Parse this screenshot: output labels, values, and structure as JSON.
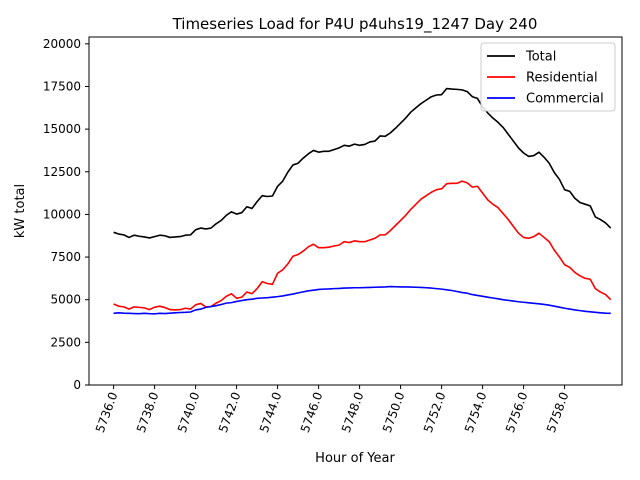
{
  "chart_data": {
    "type": "line",
    "title": "Timeseries Load for P4U p4uhs19_1247  Day 240",
    "xlabel": "Hour of Year",
    "ylabel": "kW total",
    "xlim": [
      5734.8,
      5760.8
    ],
    "ylim": [
      0,
      20400
    ],
    "x_start": 5736.0,
    "x_step": 0.25,
    "xticks": [
      5736,
      5738,
      5740,
      5742,
      5744,
      5746,
      5748,
      5750,
      5752,
      5754,
      5756,
      5758
    ],
    "xtick_labels": [
      "5736.0",
      "5738.0",
      "5740.0",
      "5742.0",
      "5744.0",
      "5746.0",
      "5748.0",
      "5750.0",
      "5752.0",
      "5754.0",
      "5756.0",
      "5758.0"
    ],
    "yticks": [
      0,
      2500,
      5000,
      7500,
      10000,
      12500,
      15000,
      17500,
      20000
    ],
    "ytick_labels": [
      "0",
      "2500",
      "5000",
      "7500",
      "10000",
      "12500",
      "15000",
      "17500",
      "20000"
    ],
    "legend_position": "top-right",
    "series": [
      {
        "name": "Total",
        "color": "#000000",
        "values": [
          8950,
          8850,
          8800,
          8650,
          8780,
          8720,
          8680,
          8620,
          8700,
          8780,
          8750,
          8650,
          8680,
          8700,
          8780,
          8800,
          9100,
          9200,
          9150,
          9200,
          9450,
          9650,
          9950,
          10150,
          10020,
          10100,
          10450,
          10350,
          10750,
          11100,
          11050,
          11080,
          11650,
          11950,
          12480,
          12900,
          13000,
          13300,
          13550,
          13750,
          13650,
          13700,
          13700,
          13800,
          13900,
          14050,
          14000,
          14120,
          14050,
          14100,
          14250,
          14300,
          14600,
          14580,
          14780,
          15050,
          15350,
          15650,
          16000,
          16250,
          16500,
          16700,
          16900,
          17000,
          17020,
          17380,
          17350,
          17330,
          17300,
          17200,
          16900,
          16800,
          16300,
          15950,
          15650,
          15400,
          15100,
          14700,
          14300,
          13900,
          13600,
          13400,
          13450,
          13650,
          13350,
          13000,
          12450,
          12050,
          11450,
          11350,
          10950,
          10700,
          10600,
          10500,
          9850,
          9700,
          9500,
          9200
        ]
      },
      {
        "name": "Residential",
        "color": "#ff0000",
        "values": [
          4750,
          4620,
          4580,
          4450,
          4580,
          4550,
          4520,
          4420,
          4560,
          4620,
          4540,
          4420,
          4400,
          4420,
          4500,
          4450,
          4700,
          4780,
          4580,
          4600,
          4800,
          4950,
          5200,
          5350,
          5080,
          5150,
          5450,
          5350,
          5650,
          6050,
          5950,
          5900,
          6550,
          6750,
          7100,
          7550,
          7650,
          7850,
          8100,
          8250,
          8050,
          8050,
          8080,
          8150,
          8200,
          8400,
          8350,
          8450,
          8400,
          8400,
          8500,
          8600,
          8800,
          8800,
          9050,
          9350,
          9650,
          9950,
          10300,
          10600,
          10900,
          11100,
          11300,
          11450,
          11500,
          11800,
          11820,
          11820,
          11950,
          11850,
          11600,
          11650,
          11250,
          10850,
          10600,
          10400,
          10050,
          9700,
          9300,
          8900,
          8650,
          8600,
          8700,
          8900,
          8650,
          8400,
          7900,
          7500,
          7050,
          6900,
          6600,
          6400,
          6250,
          6200,
          5650,
          5450,
          5300,
          5000
        ]
      },
      {
        "name": "Commercial",
        "color": "#0000ff",
        "values": [
          4200,
          4230,
          4210,
          4200,
          4190,
          4180,
          4200,
          4180,
          4170,
          4200,
          4190,
          4210,
          4230,
          4250,
          4260,
          4280,
          4400,
          4450,
          4550,
          4600,
          4650,
          4720,
          4800,
          4830,
          4900,
          4950,
          5000,
          5030,
          5080,
          5100,
          5120,
          5150,
          5180,
          5220,
          5280,
          5330,
          5400,
          5460,
          5520,
          5560,
          5600,
          5620,
          5630,
          5650,
          5660,
          5680,
          5690,
          5700,
          5700,
          5710,
          5720,
          5730,
          5740,
          5750,
          5770,
          5760,
          5750,
          5750,
          5740,
          5730,
          5720,
          5700,
          5680,
          5650,
          5620,
          5580,
          5540,
          5480,
          5420,
          5380,
          5300,
          5250,
          5200,
          5150,
          5100,
          5050,
          5000,
          4960,
          4920,
          4880,
          4850,
          4820,
          4790,
          4760,
          4720,
          4680,
          4620,
          4560,
          4500,
          4450,
          4400,
          4360,
          4320,
          4290,
          4260,
          4230,
          4210,
          4200
        ]
      }
    ]
  }
}
